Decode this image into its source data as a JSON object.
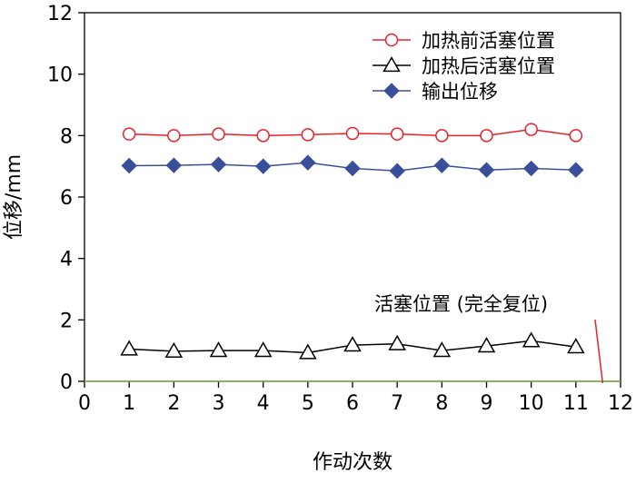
{
  "chart_data": {
    "type": "line",
    "xlabel": "作动次数",
    "ylabel": "位移/mm",
    "xlim": [
      0,
      12
    ],
    "ylim": [
      0,
      12
    ],
    "xticks": [
      0,
      1,
      2,
      3,
      4,
      5,
      6,
      7,
      8,
      9,
      10,
      11,
      12
    ],
    "yticks": [
      0,
      2,
      4,
      6,
      8,
      10,
      12
    ],
    "grid": false,
    "legend_position": "top-right",
    "x": [
      1,
      2,
      3,
      4,
      5,
      6,
      7,
      8,
      9,
      10,
      11
    ],
    "series": [
      {
        "name": "加热前活塞位置",
        "marker": "open-circle",
        "color": "#e8202a",
        "values": [
          8.05,
          8.0,
          8.05,
          8.0,
          8.03,
          8.07,
          8.05,
          8.0,
          8.0,
          8.2,
          8.0
        ]
      },
      {
        "name": "加热后活塞位置",
        "marker": "open-triangle",
        "color": "#000000",
        "values": [
          1.05,
          0.98,
          1.0,
          1.0,
          0.93,
          1.18,
          1.22,
          1.0,
          1.15,
          1.32,
          1.12
        ]
      },
      {
        "name": "输出位移",
        "marker": "filled-diamond",
        "color": "#3a4f9a",
        "values": [
          7.02,
          7.03,
          7.06,
          7.0,
          7.12,
          6.93,
          6.85,
          7.03,
          6.88,
          6.93,
          6.88
        ]
      }
    ],
    "reference_line": {
      "y": 0,
      "color": "#7ab648"
    },
    "annotation": {
      "text": "活塞位置 (完全复位)",
      "arrow_color": "#e8202a",
      "target": {
        "x": 11.6,
        "y": 0
      }
    }
  }
}
